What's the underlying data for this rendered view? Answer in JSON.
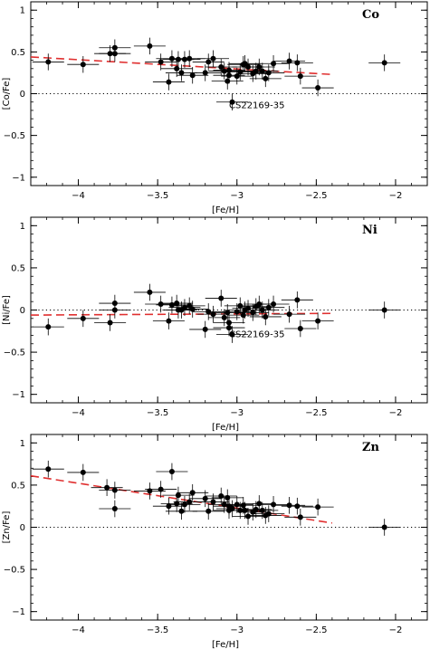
{
  "chart_data": [
    {
      "type": "scatter",
      "element": "Co",
      "xlabel": "[Fe/H]",
      "ylabel": "[Co/Fe]",
      "xlim": [
        -4.3,
        -1.8
      ],
      "ylim": [
        -1.1,
        1.1
      ],
      "x_ticks": [
        -4,
        -3.5,
        -3,
        -2.5,
        -2
      ],
      "y_ticks": [
        -1,
        -0.5,
        0,
        0.5,
        1
      ],
      "x_tick_labels": [
        "−4",
        "−3.5",
        "−3",
        "−2.5",
        "−2"
      ],
      "y_tick_labels": [
        "−1",
        "−0.5",
        "0",
        "0.5",
        "1"
      ],
      "reference_line": {
        "y": 0,
        "style": "dotted"
      },
      "trend_line": {
        "x": [
          -4.3,
          -2.4
        ],
        "y": [
          0.44,
          0.23
        ],
        "color": "#e03030",
        "style": "dashed"
      },
      "annotation": {
        "text": "CS22169-35",
        "x": -3.05,
        "y": -0.13
      },
      "series": [
        {
          "x": [
            -4.19,
            -3.97,
            -3.8,
            -3.77,
            -3.77,
            -3.55,
            -3.48,
            -3.43,
            -3.41,
            -3.38,
            -3.37,
            -3.35,
            -3.33,
            -3.3,
            -3.28,
            -3.2,
            -3.18,
            -3.15,
            -3.1,
            -3.08,
            -3.06,
            -3.05,
            -3.05,
            -3.03,
            -3.0,
            -2.98,
            -2.96,
            -2.95,
            -2.93,
            -2.9,
            -2.88,
            -2.86,
            -2.84,
            -2.82,
            -2.8,
            -2.77,
            -2.67,
            -2.62,
            -2.6,
            -2.49,
            -2.07
          ],
          "y": [
            0.38,
            0.35,
            0.48,
            0.55,
            0.48,
            0.57,
            0.38,
            0.14,
            0.42,
            0.3,
            0.41,
            0.25,
            0.41,
            0.42,
            0.22,
            0.25,
            0.38,
            0.42,
            0.32,
            0.27,
            0.15,
            0.22,
            0.28,
            -0.1,
            0.21,
            0.26,
            0.35,
            0.36,
            0.32,
            0.24,
            0.27,
            0.32,
            0.27,
            0.18,
            0.25,
            0.36,
            0.39,
            0.37,
            0.21,
            0.07,
            0.37
          ],
          "xerr": [
            0.1,
            0.1,
            0.1,
            0.1,
            0.1,
            0.1,
            0.1,
            0.1,
            0.1,
            0.1,
            0.1,
            0.1,
            0.1,
            0.1,
            0.1,
            0.1,
            0.1,
            0.1,
            0.1,
            0.1,
            0.1,
            0.1,
            0.1,
            0.1,
            0.1,
            0.1,
            0.1,
            0.1,
            0.1,
            0.1,
            0.1,
            0.1,
            0.1,
            0.1,
            0.1,
            0.1,
            0.1,
            0.1,
            0.1,
            0.1,
            0.1
          ],
          "yerr": [
            0.1,
            0.1,
            0.1,
            0.1,
            0.1,
            0.1,
            0.1,
            0.1,
            0.1,
            0.1,
            0.1,
            0.1,
            0.1,
            0.1,
            0.1,
            0.1,
            0.1,
            0.1,
            0.1,
            0.1,
            0.1,
            0.1,
            0.1,
            0.1,
            0.1,
            0.1,
            0.1,
            0.1,
            0.1,
            0.1,
            0.1,
            0.1,
            0.1,
            0.1,
            0.1,
            0.1,
            0.1,
            0.1,
            0.1,
            0.1,
            0.1
          ]
        }
      ]
    },
    {
      "type": "scatter",
      "element": "Ni",
      "xlabel": "[Fe/H]",
      "ylabel": "[Ni/Fe]",
      "xlim": [
        -4.3,
        -1.8
      ],
      "ylim": [
        -1.1,
        1.1
      ],
      "x_ticks": [
        -4,
        -3.5,
        -3,
        -2.5,
        -2
      ],
      "y_ticks": [
        -1,
        -0.5,
        0,
        0.5,
        1
      ],
      "x_tick_labels": [
        "−4",
        "−3.5",
        "−3",
        "−2.5",
        "−2"
      ],
      "y_tick_labels": [
        "−1",
        "−0.5",
        "0",
        "0.5",
        "1"
      ],
      "reference_line": {
        "y": 0,
        "style": "dotted"
      },
      "trend_line": {
        "x": [
          -4.3,
          -2.4
        ],
        "y": [
          -0.06,
          -0.04
        ],
        "color": "#e03030",
        "style": "dashed"
      },
      "annotation": {
        "text": "CS22169-35",
        "x": -3.05,
        "y": -0.28
      },
      "series": [
        {
          "x": [
            -4.19,
            -3.97,
            -3.8,
            -3.77,
            -3.77,
            -3.55,
            -3.48,
            -3.43,
            -3.41,
            -3.38,
            -3.37,
            -3.35,
            -3.33,
            -3.3,
            -3.28,
            -3.2,
            -3.18,
            -3.15,
            -3.1,
            -3.08,
            -3.06,
            -3.05,
            -3.05,
            -3.03,
            -3.0,
            -2.98,
            -2.96,
            -2.95,
            -2.93,
            -2.9,
            -2.88,
            -2.86,
            -2.84,
            -2.82,
            -2.8,
            -2.77,
            -2.67,
            -2.62,
            -2.6,
            -2.49,
            -2.07
          ],
          "y": [
            -0.2,
            -0.1,
            -0.15,
            0.0,
            0.08,
            0.21,
            0.07,
            -0.13,
            0.06,
            0.08,
            0.0,
            0.0,
            0.03,
            0.05,
            0.01,
            -0.23,
            -0.02,
            -0.05,
            0.14,
            -0.09,
            -0.03,
            -0.15,
            -0.21,
            -0.29,
            -0.02,
            0.05,
            -0.06,
            0.0,
            0.02,
            -0.03,
            0.04,
            0.07,
            0.0,
            -0.08,
            0.03,
            0.07,
            -0.05,
            0.12,
            -0.22,
            -0.13,
            0.0
          ],
          "xerr": [
            0.1,
            0.1,
            0.1,
            0.1,
            0.1,
            0.1,
            0.1,
            0.1,
            0.1,
            0.1,
            0.1,
            0.1,
            0.1,
            0.1,
            0.1,
            0.1,
            0.1,
            0.1,
            0.1,
            0.1,
            0.1,
            0.1,
            0.1,
            0.1,
            0.1,
            0.1,
            0.1,
            0.1,
            0.1,
            0.1,
            0.1,
            0.1,
            0.1,
            0.1,
            0.1,
            0.1,
            0.1,
            0.1,
            0.1,
            0.1,
            0.1
          ],
          "yerr": [
            0.1,
            0.1,
            0.1,
            0.1,
            0.1,
            0.1,
            0.1,
            0.1,
            0.1,
            0.1,
            0.1,
            0.1,
            0.1,
            0.1,
            0.1,
            0.1,
            0.1,
            0.1,
            0.1,
            0.1,
            0.1,
            0.1,
            0.1,
            0.1,
            0.1,
            0.1,
            0.1,
            0.1,
            0.1,
            0.1,
            0.1,
            0.1,
            0.1,
            0.1,
            0.1,
            0.1,
            0.1,
            0.1,
            0.1,
            0.1,
            0.1
          ]
        }
      ]
    },
    {
      "type": "scatter",
      "element": "Zn",
      "xlabel": "[Fe/H]",
      "ylabel": "[Zn/Fe]",
      "xlim": [
        -4.3,
        -1.8
      ],
      "ylim": [
        -1.1,
        1.1
      ],
      "x_ticks": [
        -4,
        -3.5,
        -3,
        -2.5,
        -2
      ],
      "y_ticks": [
        -1,
        -0.5,
        0,
        0.5,
        1
      ],
      "x_tick_labels": [
        "−4",
        "−3.5",
        "−3",
        "−2.5",
        "−2"
      ],
      "y_tick_labels": [
        "−1",
        "−0.5",
        "0",
        "0.5",
        "1"
      ],
      "reference_line": {
        "y": 0,
        "style": "dotted"
      },
      "trend_line": {
        "x": [
          -4.3,
          -2.4
        ],
        "y": [
          0.61,
          0.05
        ],
        "color": "#e03030",
        "style": "dashed"
      },
      "series": [
        {
          "x": [
            -4.19,
            -3.97,
            -3.82,
            -3.77,
            -3.77,
            -3.55,
            -3.48,
            -3.43,
            -3.41,
            -3.38,
            -3.37,
            -3.35,
            -3.33,
            -3.3,
            -3.28,
            -3.2,
            -3.18,
            -3.15,
            -3.1,
            -3.08,
            -3.06,
            -3.05,
            -3.05,
            -3.03,
            -3.0,
            -2.98,
            -2.96,
            -2.95,
            -2.93,
            -2.9,
            -2.88,
            -2.86,
            -2.84,
            -2.82,
            -2.8,
            -2.77,
            -2.67,
            -2.62,
            -2.6,
            -2.49,
            -2.07
          ],
          "y": [
            0.69,
            0.65,
            0.47,
            0.44,
            0.22,
            0.43,
            0.45,
            0.25,
            0.66,
            0.28,
            0.38,
            0.19,
            0.27,
            0.3,
            0.41,
            0.34,
            0.19,
            0.3,
            0.37,
            0.27,
            0.35,
            0.2,
            0.25,
            0.22,
            0.27,
            0.2,
            0.26,
            0.2,
            0.13,
            0.18,
            0.21,
            0.28,
            0.2,
            0.14,
            0.16,
            0.27,
            0.26,
            0.25,
            0.12,
            0.24,
            0.0
          ],
          "xerr": [
            0.1,
            0.1,
            0.1,
            0.1,
            0.1,
            0.1,
            0.1,
            0.1,
            0.1,
            0.1,
            0.1,
            0.1,
            0.1,
            0.1,
            0.1,
            0.1,
            0.1,
            0.1,
            0.1,
            0.1,
            0.1,
            0.1,
            0.1,
            0.1,
            0.1,
            0.1,
            0.1,
            0.1,
            0.1,
            0.1,
            0.1,
            0.1,
            0.1,
            0.1,
            0.1,
            0.1,
            0.1,
            0.1,
            0.1,
            0.1,
            0.1
          ],
          "yerr": [
            0.1,
            0.1,
            0.1,
            0.1,
            0.1,
            0.1,
            0.1,
            0.1,
            0.1,
            0.1,
            0.1,
            0.1,
            0.1,
            0.1,
            0.1,
            0.1,
            0.1,
            0.1,
            0.1,
            0.1,
            0.1,
            0.1,
            0.1,
            0.1,
            0.1,
            0.1,
            0.1,
            0.1,
            0.1,
            0.1,
            0.1,
            0.1,
            0.1,
            0.1,
            0.1,
            0.1,
            0.1,
            0.1,
            0.1,
            0.1,
            0.1
          ]
        }
      ]
    }
  ]
}
